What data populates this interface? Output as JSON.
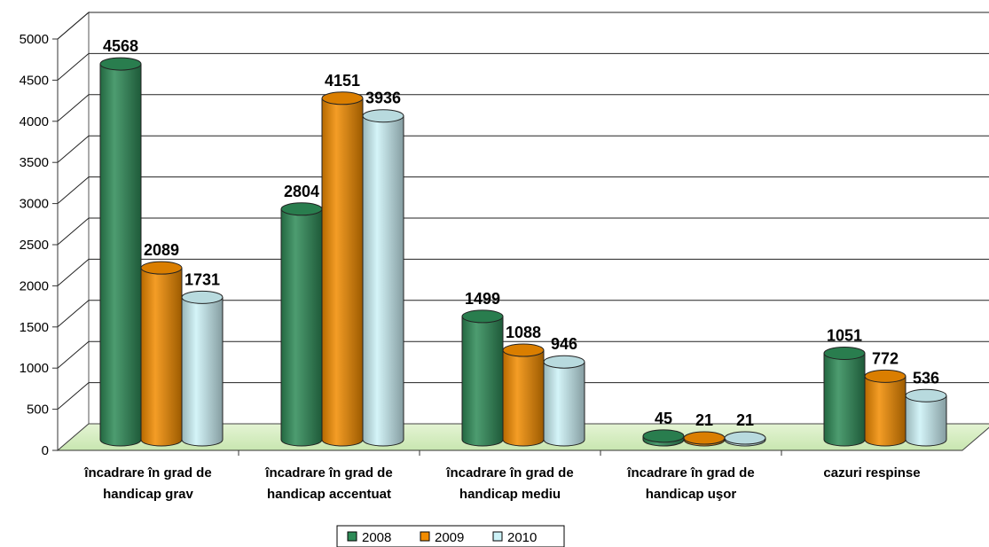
{
  "chart_data": {
    "type": "bar",
    "style": "3d-cylinder",
    "categories": [
      [
        "încadrare în grad de",
        "handicap grav"
      ],
      [
        "încadrare în grad de",
        "handicap accentuat"
      ],
      [
        "încadrare în grad de",
        "handicap mediu"
      ],
      [
        "încadrare în grad de",
        "handicap uşor"
      ],
      [
        "cazuri respinse"
      ]
    ],
    "series": [
      {
        "name": "2008",
        "values": [
          4568,
          2804,
          1499,
          45,
          1051
        ],
        "color": "#2e8b57"
      },
      {
        "name": "2009",
        "values": [
          2089,
          4151,
          1088,
          21,
          772
        ],
        "color": "#f28c00"
      },
      {
        "name": "2010",
        "values": [
          1731,
          3936,
          946,
          21,
          536
        ],
        "color": "#ccf2f7"
      }
    ],
    "ylim": [
      0,
      5000
    ],
    "yticks": [
      0,
      500,
      1000,
      1500,
      2000,
      2500,
      3000,
      3500,
      4000,
      4500,
      5000
    ],
    "grid": true,
    "floor_color": "#c8e6b0",
    "legend_position": "bottom"
  }
}
